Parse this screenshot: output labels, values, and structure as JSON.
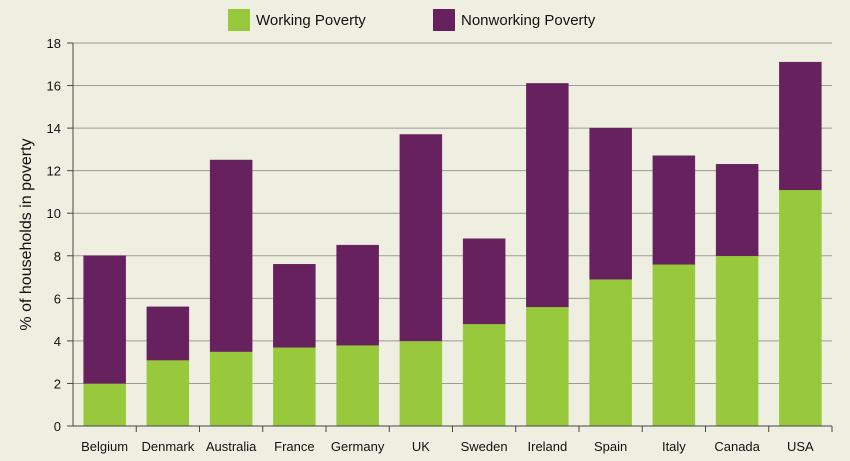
{
  "chart_data": {
    "type": "bar",
    "stacked": true,
    "title": "",
    "xlabel": "",
    "ylabel": "% of households in poverty",
    "ylim": [
      0,
      18
    ],
    "yticks": [
      0,
      2,
      4,
      6,
      8,
      10,
      12,
      14,
      16,
      18
    ],
    "grid": true,
    "legend_position": "top-center",
    "categories": [
      "Belgium",
      "Denmark",
      "Australia",
      "France",
      "Germany",
      "UK",
      "Sweden",
      "Ireland",
      "Spain",
      "Italy",
      "Canada",
      "USA"
    ],
    "series": [
      {
        "name": "Working Poverty",
        "color": "#98c93c",
        "values": [
          2.0,
          3.1,
          3.5,
          3.7,
          3.8,
          4.0,
          4.8,
          5.6,
          6.9,
          7.6,
          8.0,
          11.1
        ]
      },
      {
        "name": "Nonworking Poverty",
        "color": "#67215f",
        "values": [
          6.0,
          2.5,
          9.0,
          3.9,
          4.7,
          9.7,
          4.0,
          10.5,
          7.1,
          5.1,
          4.3,
          6.0
        ]
      }
    ]
  }
}
